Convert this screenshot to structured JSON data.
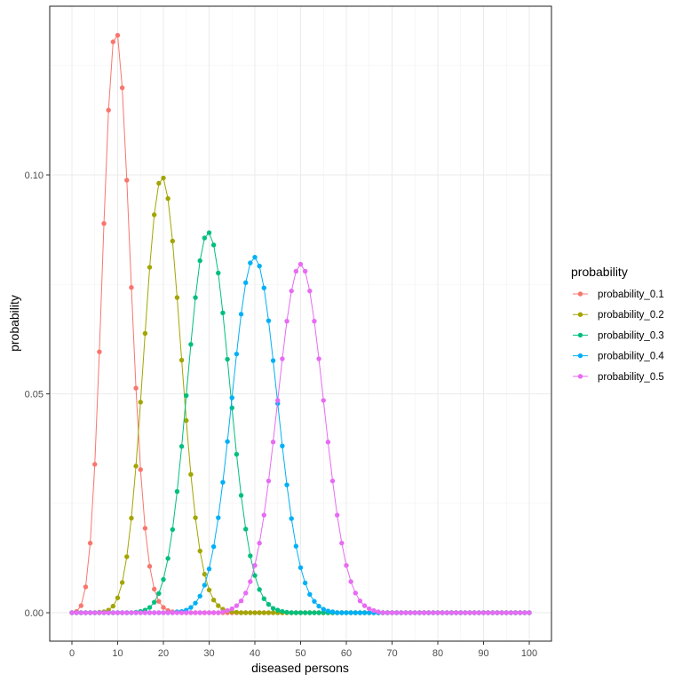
{
  "chart_data": {
    "type": "line",
    "title": "",
    "xlabel": "diseased persons",
    "ylabel": "probability",
    "xlim": [
      0,
      100
    ],
    "ylim": [
      0,
      0.1319
    ],
    "x_ticks": [
      0,
      10,
      20,
      30,
      40,
      50,
      60,
      70,
      80,
      90,
      100
    ],
    "x_tick_labels": [
      "0",
      "10",
      "20",
      "30",
      "40",
      "50",
      "60",
      "70",
      "80",
      "90",
      "100"
    ],
    "y_ticks": [
      0,
      0.05,
      0.1
    ],
    "y_tick_labels": [
      "0.00",
      "0.05",
      "0.10"
    ],
    "grid": true,
    "markers": true,
    "legend": {
      "title": "probability",
      "position": "right"
    },
    "x": "integers 0..100 (n = 100 trials)",
    "series": [
      {
        "name": "probability_0.1",
        "color": "#F8766D",
        "p": 0.1,
        "values": {
          "0": 0.0,
          "1": 0.0003,
          "2": 0.0016,
          "3": 0.0059,
          "4": 0.0159,
          "5": 0.0339,
          "6": 0.0596,
          "7": 0.0889,
          "8": 0.1148,
          "9": 0.1304,
          "10": 0.1319,
          "11": 0.1199,
          "12": 0.0988,
          "13": 0.0743,
          "14": 0.0513,
          "15": 0.0327,
          "16": 0.0193,
          "17": 0.0106,
          "18": 0.0054,
          "19": 0.0026,
          "20": 0.0012,
          "21": 0.0005,
          "22": 0.0002,
          "23": 0.0001
        }
      },
      {
        "name": "probability_0.2",
        "color": "#A3A500",
        "p": 0.2,
        "values": {
          "6": 0.0001,
          "7": 0.0002,
          "8": 0.0006,
          "9": 0.0015,
          "10": 0.0034,
          "11": 0.0069,
          "12": 0.0128,
          "13": 0.0216,
          "14": 0.0335,
          "15": 0.0481,
          "16": 0.0638,
          "17": 0.0789,
          "18": 0.0909,
          "19": 0.0981,
          "20": 0.0993,
          "21": 0.0946,
          "22": 0.0849,
          "23": 0.072,
          "24": 0.0577,
          "25": 0.0439,
          "26": 0.0316,
          "27": 0.0217,
          "28": 0.0141,
          "29": 0.0088,
          "30": 0.0052,
          "31": 0.0029,
          "32": 0.0016,
          "33": 0.0008,
          "34": 0.0004,
          "35": 0.0002,
          "36": 0.0001
        }
      },
      {
        "name": "probability_0.3",
        "color": "#00BF7D",
        "p": 0.3,
        "values": {
          "14": 0.0001,
          "15": 0.0003,
          "16": 0.0006,
          "17": 0.0012,
          "18": 0.0024,
          "19": 0.0044,
          "20": 0.0076,
          "21": 0.0124,
          "22": 0.019,
          "23": 0.0277,
          "24": 0.038,
          "25": 0.0496,
          "26": 0.0613,
          "27": 0.072,
          "28": 0.0804,
          "29": 0.0856,
          "30": 0.0868,
          "31": 0.084,
          "32": 0.0776,
          "33": 0.0685,
          "34": 0.0579,
          "35": 0.0468,
          "36": 0.0362,
          "37": 0.0268,
          "38": 0.0191,
          "39": 0.013,
          "40": 0.0085,
          "41": 0.0053,
          "42": 0.0032,
          "43": 0.0019,
          "44": 0.001,
          "45": 0.0006,
          "46": 0.0003,
          "47": 0.0001
        }
      },
      {
        "name": "probability_0.4",
        "color": "#00B0F6",
        "p": 0.4,
        "values": {
          "23": 0.0002,
          "24": 0.0003,
          "25": 0.0006,
          "26": 0.0012,
          "27": 0.0022,
          "28": 0.0038,
          "29": 0.0063,
          "30": 0.01,
          "31": 0.0151,
          "32": 0.0217,
          "33": 0.0298,
          "34": 0.0391,
          "35": 0.0491,
          "36": 0.0591,
          "37": 0.0682,
          "38": 0.0754,
          "39": 0.0799,
          "40": 0.0812,
          "41": 0.0792,
          "42": 0.0742,
          "43": 0.0667,
          "44": 0.0576,
          "45": 0.0478,
          "46": 0.0381,
          "47": 0.0292,
          "48": 0.0215,
          "49": 0.0152,
          "50": 0.0103,
          "51": 0.0068,
          "52": 0.0042,
          "53": 0.0026,
          "54": 0.0015,
          "55": 0.0008,
          "56": 0.0004,
          "57": 0.0002
        }
      },
      {
        "name": "probability_0.5",
        "color": "#E76BF3",
        "p": 0.5,
        "values": {
          "33": 0.0002,
          "34": 0.0005,
          "35": 0.0009,
          "36": 0.0016,
          "37": 0.0027,
          "38": 0.0045,
          "39": 0.0071,
          "40": 0.0108,
          "41": 0.0159,
          "42": 0.0223,
          "43": 0.0301,
          "44": 0.039,
          "45": 0.0485,
          "46": 0.058,
          "47": 0.0666,
          "48": 0.0735,
          "49": 0.078,
          "50": 0.0796,
          "51": 0.078,
          "52": 0.0735,
          "53": 0.0666,
          "54": 0.058,
          "55": 0.0485,
          "56": 0.039,
          "57": 0.0301,
          "58": 0.0223,
          "59": 0.0159,
          "60": 0.0108,
          "61": 0.0071,
          "62": 0.0045,
          "63": 0.0027,
          "64": 0.0016,
          "65": 0.0009,
          "66": 0.0005,
          "67": 0.0002
        }
      }
    ]
  },
  "legend": {
    "title": "probability",
    "items": [
      {
        "label": "probability_0.1",
        "color": "#F8766D"
      },
      {
        "label": "probability_0.2",
        "color": "#A3A500"
      },
      {
        "label": "probability_0.3",
        "color": "#00BF7D"
      },
      {
        "label": "probability_0.4",
        "color": "#00B0F6"
      },
      {
        "label": "probability_0.5",
        "color": "#E76BF3"
      }
    ]
  },
  "axes": {
    "x_title": "diseased persons",
    "y_title": "probability"
  }
}
